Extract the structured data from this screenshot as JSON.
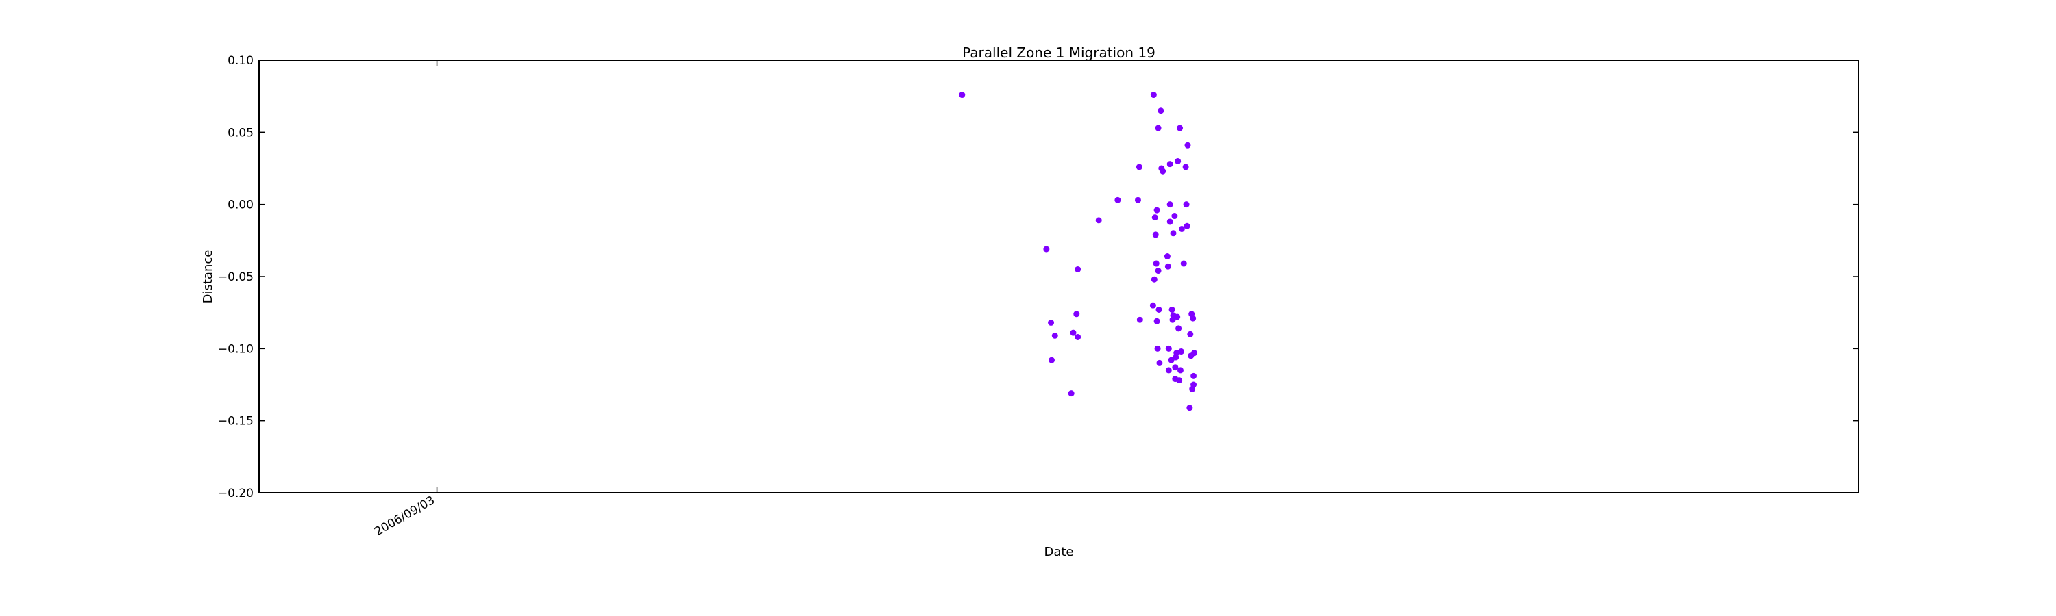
{
  "chart_data": {
    "type": "scatter",
    "title": "Parallel Zone 1 Migration 19",
    "xlabel": "Date",
    "ylabel": "Distance",
    "ylim": [
      -0.2,
      0.1
    ],
    "yticks": [
      0.1,
      0.05,
      0.0,
      -0.05,
      -0.1,
      -0.15,
      -0.2
    ],
    "ytick_labels": [
      "0.10",
      "0.05",
      "0.00",
      "−0.05",
      "−0.10",
      "−0.15",
      "−0.20"
    ],
    "xlim": [
      "2005-12-05",
      "2012-08-16"
    ],
    "xticks": [
      "2006-09-03"
    ],
    "xtick_labels": [
      "2006/09/03"
    ],
    "grid": false,
    "marker_color": "#8000ff",
    "series": [
      {
        "points": [
          {
            "x": "2008-11-14",
            "y": 0.076
          },
          {
            "x": "2009-03-23",
            "y": -0.031
          },
          {
            "x": "2009-03-30",
            "y": -0.082
          },
          {
            "x": "2009-03-31",
            "y": -0.108
          },
          {
            "x": "2009-04-05",
            "y": -0.091
          },
          {
            "x": "2009-04-30",
            "y": -0.131
          },
          {
            "x": "2009-05-03",
            "y": -0.089
          },
          {
            "x": "2009-05-08",
            "y": -0.076
          },
          {
            "x": "2009-05-10",
            "y": -0.045
          },
          {
            "x": "2009-05-10",
            "y": -0.092
          },
          {
            "x": "2009-06-11",
            "y": -0.011
          },
          {
            "x": "2009-07-10",
            "y": 0.003
          },
          {
            "x": "2009-08-10",
            "y": 0.003
          },
          {
            "x": "2009-08-12",
            "y": 0.026
          },
          {
            "x": "2009-08-13",
            "y": -0.08
          },
          {
            "x": "2009-09-02",
            "y": -0.07
          },
          {
            "x": "2009-09-03",
            "y": 0.076
          },
          {
            "x": "2009-09-04",
            "y": -0.052
          },
          {
            "x": "2009-09-05",
            "y": -0.009
          },
          {
            "x": "2009-09-06",
            "y": -0.021
          },
          {
            "x": "2009-09-07",
            "y": -0.041
          },
          {
            "x": "2009-09-08",
            "y": -0.081
          },
          {
            "x": "2009-09-08",
            "y": -0.004
          },
          {
            "x": "2009-09-09",
            "y": -0.1
          },
          {
            "x": "2009-09-10",
            "y": 0.053
          },
          {
            "x": "2009-09-10",
            "y": -0.046
          },
          {
            "x": "2009-09-11",
            "y": -0.073
          },
          {
            "x": "2009-09-12",
            "y": -0.11
          },
          {
            "x": "2009-09-14",
            "y": 0.065
          },
          {
            "x": "2009-09-15",
            "y": 0.025
          },
          {
            "x": "2009-09-17",
            "y": 0.023
          },
          {
            "x": "2009-09-24",
            "y": -0.036
          },
          {
            "x": "2009-09-25",
            "y": -0.043
          },
          {
            "x": "2009-09-26",
            "y": -0.1
          },
          {
            "x": "2009-09-26",
            "y": -0.115
          },
          {
            "x": "2009-09-28",
            "y": 0.028
          },
          {
            "x": "2009-09-28",
            "y": -0.012
          },
          {
            "x": "2009-09-28",
            "y": 0.0
          },
          {
            "x": "2009-09-30",
            "y": -0.108
          },
          {
            "x": "2009-10-01",
            "y": -0.073
          },
          {
            "x": "2009-10-02",
            "y": -0.08
          },
          {
            "x": "2009-10-03",
            "y": -0.02
          },
          {
            "x": "2009-10-03",
            "y": -0.077
          },
          {
            "x": "2009-10-05",
            "y": -0.008
          },
          {
            "x": "2009-10-06",
            "y": -0.113
          },
          {
            "x": "2009-10-06",
            "y": -0.121
          },
          {
            "x": "2009-10-07",
            "y": -0.106
          },
          {
            "x": "2009-10-08",
            "y": -0.103
          },
          {
            "x": "2009-10-09",
            "y": -0.078
          },
          {
            "x": "2009-10-10",
            "y": 0.03
          },
          {
            "x": "2009-10-11",
            "y": -0.086
          },
          {
            "x": "2009-10-12",
            "y": -0.122
          },
          {
            "x": "2009-10-13",
            "y": 0.053
          },
          {
            "x": "2009-10-14",
            "y": -0.115
          },
          {
            "x": "2009-10-15",
            "y": -0.102
          },
          {
            "x": "2009-10-16",
            "y": -0.017
          },
          {
            "x": "2009-10-19",
            "y": -0.041
          },
          {
            "x": "2009-10-22",
            "y": 0.026
          },
          {
            "x": "2009-10-23",
            "y": 0.0
          },
          {
            "x": "2009-10-24",
            "y": -0.015
          },
          {
            "x": "2009-10-25",
            "y": 0.041
          },
          {
            "x": "2009-10-28",
            "y": -0.141
          },
          {
            "x": "2009-10-29",
            "y": -0.09
          },
          {
            "x": "2009-10-30",
            "y": -0.105
          },
          {
            "x": "2009-10-31",
            "y": -0.076
          },
          {
            "x": "2009-11-01",
            "y": -0.128
          },
          {
            "x": "2009-11-02",
            "y": -0.079
          },
          {
            "x": "2009-11-03",
            "y": -0.125
          },
          {
            "x": "2009-11-03",
            "y": -0.119
          },
          {
            "x": "2009-11-04",
            "y": -0.103
          }
        ]
      }
    ]
  }
}
